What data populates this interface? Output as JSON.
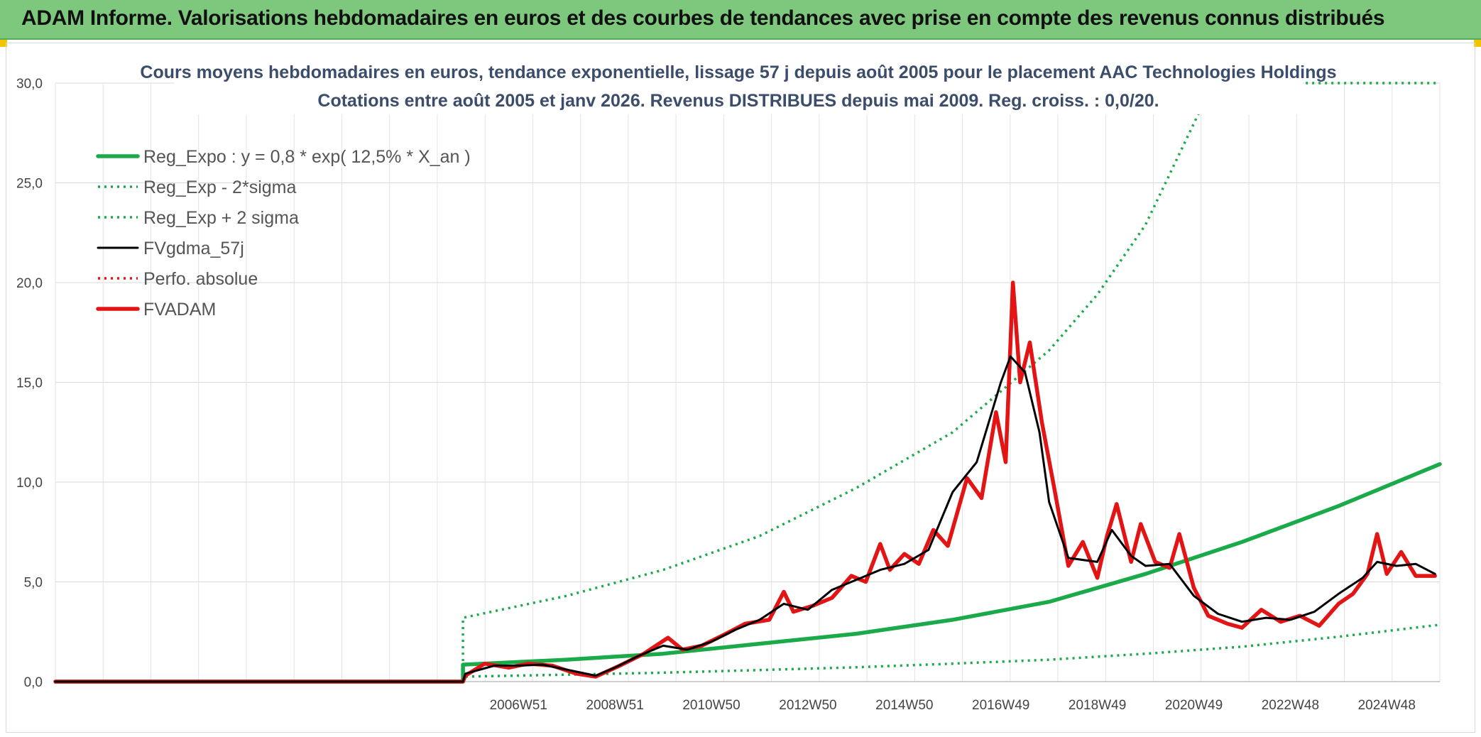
{
  "header": {
    "title": "ADAM Informe. Valorisations hebdomadaires en euros et des courbes de tendances avec prise en compte des revenus connus distribués"
  },
  "chart_data": {
    "type": "line",
    "title": "Cours moyens hebdomadaires en euros, tendance exponentielle, lissage 57 j depuis août 2005 pour le placement AAC Technologies Holdings",
    "subtitle": "Cotations entre août 2005 et janv 2026. Revenus DISTRIBUES depuis mai 2009. Reg. croiss. : 0,0/20.",
    "xlabel": "",
    "ylabel": "",
    "ylim": [
      0,
      30
    ],
    "y_ticks": [
      "0,0",
      "5,0",
      "10,0",
      "15,0",
      "20,0",
      "25,0",
      "30,0"
    ],
    "x_ticks": [
      "2006W51",
      "2008W51",
      "2010W50",
      "2012W50",
      "2014W50",
      "2016W49",
      "2018W49",
      "2020W49",
      "2022W48",
      "2024W48"
    ],
    "x_range": [
      1997.4,
      2026.1
    ],
    "grid": true,
    "legend_position": "top-left",
    "colors": {
      "green": "#1aaa4a",
      "black": "#000000",
      "red": "#e31414"
    },
    "series": [
      {
        "name": "Reg_Expo : y = 0,8 * exp( 12,5% *  X_an )",
        "style": "solid-thick",
        "color": "#1aaa4a",
        "x": [
          1997.4,
          2005.85,
          2005.85,
          2008,
          2010,
          2012,
          2014,
          2016,
          2018,
          2020,
          2022,
          2024,
          2026.1
        ],
        "values": [
          0,
          0,
          0.85,
          1.1,
          1.4,
          1.9,
          2.4,
          3.1,
          4.0,
          5.4,
          7.0,
          8.8,
          10.9
        ]
      },
      {
        "name": "Reg_Exp - 2*sigma",
        "style": "dotted",
        "color": "#1aaa4a",
        "x": [
          1997.4,
          2005.85,
          2005.85,
          2008,
          2010,
          2012,
          2014,
          2016,
          2018,
          2020,
          2022,
          2024,
          2026.1
        ],
        "values": [
          0,
          0,
          0.25,
          0.35,
          0.45,
          0.58,
          0.72,
          0.9,
          1.1,
          1.4,
          1.75,
          2.25,
          2.85
        ]
      },
      {
        "name": "Reg_Exp + 2 sigma",
        "style": "dotted",
        "color": "#1aaa4a",
        "x": [
          1997.4,
          2005.85,
          2005.85,
          2008,
          2010,
          2012,
          2014,
          2016,
          2018,
          2019,
          2020,
          2021.4,
          2022,
          2024,
          2026.1
        ],
        "values": [
          0,
          0,
          3.2,
          4.3,
          5.6,
          7.3,
          9.7,
          12.5,
          16.6,
          19.4,
          22.9,
          30.0,
          30.0,
          30.0,
          30.0
        ]
      },
      {
        "name": "FVgdma_57j",
        "style": "solid",
        "color": "#000000",
        "x": [
          1997.4,
          2005.85,
          2005.9,
          2006.5,
          2007,
          2007.5,
          2008,
          2008.6,
          2009,
          2009.5,
          2010,
          2010.5,
          2011,
          2011.5,
          2012,
          2012.5,
          2013,
          2013.5,
          2014,
          2014.5,
          2015,
          2015.5,
          2016,
          2016.5,
          2017,
          2017.2,
          2017.5,
          2017.8,
          2018,
          2018.4,
          2019,
          2019.3,
          2019.7,
          2020,
          2020.5,
          2021,
          2021.5,
          2022,
          2022.5,
          2023,
          2023.5,
          2024,
          2024.5,
          2024.8,
          2025.2,
          2025.6,
          2026.0
        ],
        "values": [
          0,
          0,
          0.4,
          0.8,
          0.8,
          0.85,
          0.6,
          0.3,
          0.7,
          1.3,
          1.8,
          1.6,
          2.0,
          2.6,
          3.1,
          3.9,
          3.6,
          4.6,
          5.1,
          5.6,
          5.9,
          6.6,
          9.5,
          11.0,
          15.0,
          16.3,
          15.5,
          12.5,
          9.0,
          6.2,
          6.0,
          7.6,
          6.3,
          5.8,
          5.9,
          4.3,
          3.4,
          3.0,
          3.2,
          3.1,
          3.5,
          4.4,
          5.2,
          6.0,
          5.8,
          5.9,
          5.4
        ]
      },
      {
        "name": "Perfo. absolue",
        "style": "dotted",
        "color": "#e31414",
        "x": [
          1997.4,
          2005.85
        ],
        "values": [
          0,
          0
        ]
      },
      {
        "name": "FVADAM",
        "style": "solid-thick",
        "color": "#e31414",
        "x": [
          1997.4,
          2005.85,
          2005.9,
          2006.3,
          2006.8,
          2007.2,
          2007.7,
          2008.2,
          2008.6,
          2009.1,
          2009.6,
          2010.1,
          2010.4,
          2010.8,
          2011.3,
          2011.7,
          2012.2,
          2012.5,
          2012.7,
          2013.1,
          2013.5,
          2013.9,
          2014.2,
          2014.5,
          2014.7,
          2015.0,
          2015.3,
          2015.6,
          2015.9,
          2016.3,
          2016.6,
          2016.9,
          2017.1,
          2017.25,
          2017.4,
          2017.6,
          2017.85,
          2018.1,
          2018.4,
          2018.7,
          2019.0,
          2019.2,
          2019.4,
          2019.7,
          2019.9,
          2020.2,
          2020.5,
          2020.7,
          2021.0,
          2021.3,
          2021.7,
          2022.0,
          2022.4,
          2022.8,
          2023.2,
          2023.6,
          2024.0,
          2024.3,
          2024.6,
          2024.8,
          2025.0,
          2025.3,
          2025.6,
          2026.0
        ],
        "values": [
          0,
          0,
          0.3,
          0.9,
          0.7,
          0.9,
          0.8,
          0.4,
          0.25,
          0.8,
          1.4,
          2.2,
          1.6,
          1.8,
          2.4,
          2.9,
          3.1,
          4.5,
          3.5,
          3.8,
          4.2,
          5.3,
          5.0,
          6.9,
          5.6,
          6.4,
          5.9,
          7.6,
          6.8,
          10.2,
          9.2,
          13.5,
          11.0,
          20.0,
          15.0,
          17.0,
          13.0,
          9.8,
          5.8,
          7.0,
          5.2,
          7.3,
          8.9,
          6.0,
          7.9,
          6.0,
          5.7,
          7.4,
          4.7,
          3.3,
          2.9,
          2.7,
          3.6,
          3.0,
          3.3,
          2.8,
          3.9,
          4.4,
          5.4,
          7.4,
          5.4,
          6.5,
          5.3,
          5.3
        ]
      }
    ]
  }
}
